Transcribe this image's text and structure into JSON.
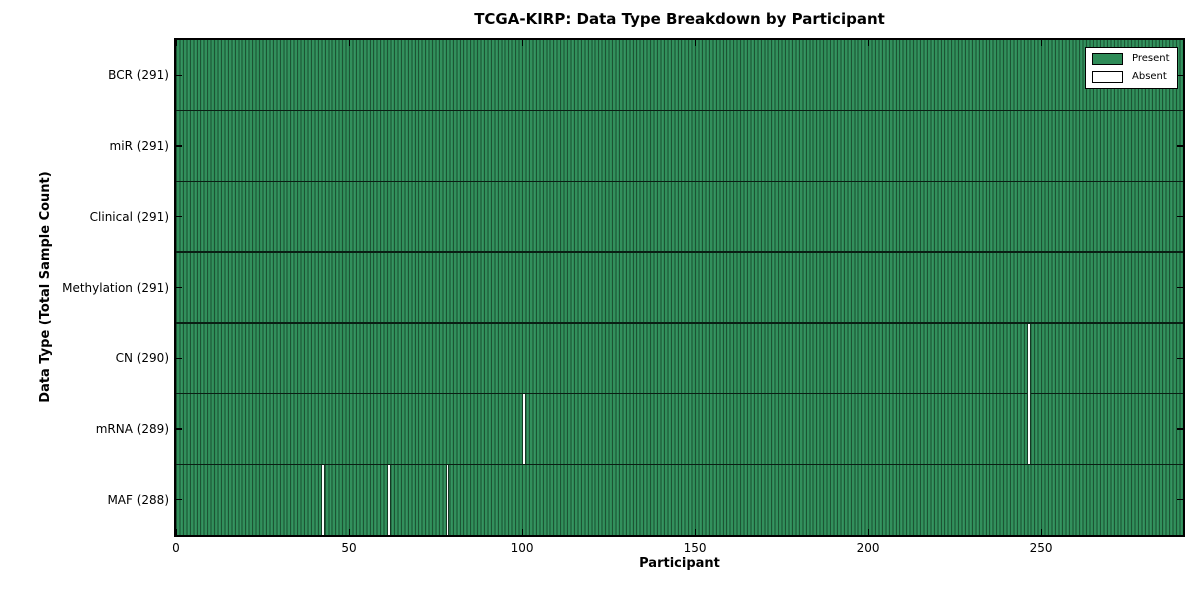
{
  "title": "TCGA-KIRP: Data Type Breakdown by Participant",
  "chart_data": {
    "type": "heatmap",
    "title": "TCGA-KIRP: Data Type Breakdown by Participant",
    "xlabel": "Participant",
    "ylabel": "Data Type (Total Sample Count)",
    "xlim": [
      0,
      291
    ],
    "x_ticks": [
      0,
      50,
      100,
      150,
      200,
      250
    ],
    "total_participants": 291,
    "grid": false,
    "legend": {
      "position": "upper right",
      "entries": [
        {
          "label": "Present",
          "color": "#2e8b57"
        },
        {
          "label": "Absent",
          "color": "#ffffff"
        }
      ]
    },
    "rows": [
      {
        "data_type": "BCR",
        "tick_label": "BCR (291)",
        "present_count": 291,
        "absent_participants": []
      },
      {
        "data_type": "miR",
        "tick_label": "miR (291)",
        "present_count": 291,
        "absent_participants": []
      },
      {
        "data_type": "Clinical",
        "tick_label": "Clinical (291)",
        "present_count": 291,
        "absent_participants": []
      },
      {
        "data_type": "Methylation",
        "tick_label": "Methylation (291)",
        "present_count": 291,
        "absent_participants": []
      },
      {
        "data_type": "CN",
        "tick_label": "CN (290)",
        "present_count": 290,
        "absent_participants": [
          246
        ]
      },
      {
        "data_type": "mRNA",
        "tick_label": "mRNA (289)",
        "present_count": 289,
        "absent_participants": [
          100,
          246
        ]
      },
      {
        "data_type": "MAF",
        "tick_label": "MAF (288)",
        "present_count": 288,
        "absent_participants": [
          42,
          61,
          78
        ]
      }
    ],
    "colors": {
      "present_fill": "#2e8b57",
      "present_fill_light": "#369462",
      "present_edge": "#1c5434",
      "absent_fill": "#fdfdfd",
      "separator": "#0a1f14",
      "spine": "#000000",
      "text": "#000000"
    }
  }
}
